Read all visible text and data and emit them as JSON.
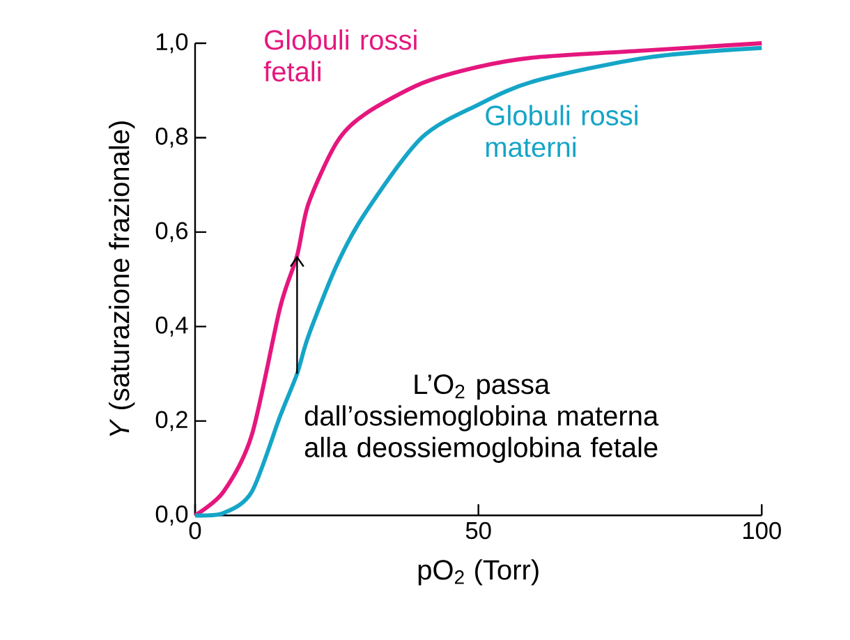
{
  "chart_data": {
    "type": "line",
    "xlabel": "pO$_{2}$ (Torr)",
    "ylabel": "*Y* (saturazione frazionale)",
    "xlim": [
      0,
      100
    ],
    "ylim": [
      0,
      1
    ],
    "xticks": [
      0,
      50,
      100
    ],
    "yticks": [
      {
        "value": 0,
        "label": "0,0"
      },
      {
        "value": 0.2,
        "label": "0,2"
      },
      {
        "value": 0.4,
        "label": "0,4"
      },
      {
        "value": 0.6,
        "label": "0,6"
      },
      {
        "value": 0.8,
        "label": "0,8"
      },
      {
        "value": 1,
        "label": "1,0"
      }
    ],
    "grid": false,
    "marker": "none",
    "line_style": "solid",
    "series": [
      {
        "name": "Globuli rossi fetali",
        "color": "#e5177e",
        "x": [
          0,
          5,
          10,
          15,
          18,
          20,
          25,
          30,
          40,
          50,
          60,
          80,
          100
        ],
        "values": [
          0,
          0.05,
          0.17,
          0.44,
          0.55,
          0.66,
          0.79,
          0.85,
          0.915,
          0.95,
          0.97,
          0.985,
          1.0
        ]
      },
      {
        "name": "Globuli rossi materni",
        "color": "#15a5c7",
        "x": [
          0,
          5,
          10,
          15,
          18,
          20,
          25,
          30,
          40,
          50,
          60,
          80,
          100
        ],
        "values": [
          0,
          0.005,
          0.05,
          0.21,
          0.3,
          0.38,
          0.53,
          0.64,
          0.8,
          0.87,
          0.92,
          0.97,
          0.99
        ]
      }
    ],
    "annotations": [
      {
        "text": "L’O$_{2}$ passa dall’ossiemoglobina materna alla deossiemoglobina fetale",
        "x": 18,
        "y": 0.55
      }
    ]
  }
}
